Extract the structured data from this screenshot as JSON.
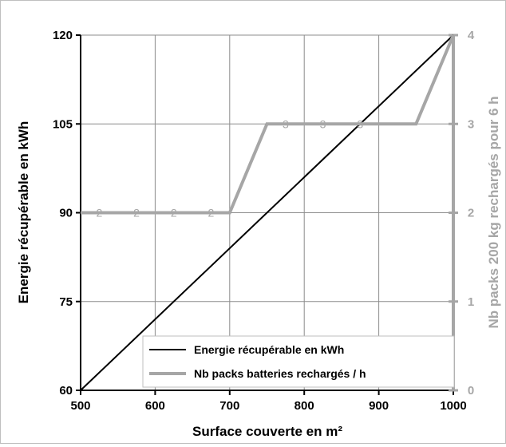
{
  "chart_data": {
    "type": "line",
    "xlabel": "Surface couverte en m²",
    "ylabel": "Energie récupérable en kWh",
    "y2label": "Nb packs 200 kg rechargés pour 6 h",
    "xlim": [
      500,
      1000
    ],
    "ylim": [
      60,
      120
    ],
    "y2lim": [
      0,
      4
    ],
    "xticks": [
      "500",
      "600",
      "700",
      "800",
      "900",
      "1000"
    ],
    "yticks": [
      "60",
      "75",
      "90",
      "105",
      "120"
    ],
    "y2ticks": [
      "0",
      "1",
      "2",
      "3",
      "4"
    ],
    "grid": true,
    "legend_position": "bottom-right",
    "series": [
      {
        "name": "Energie récupérable en kWh",
        "axis": "left",
        "color": "#000000",
        "x": [
          500,
          1000
        ],
        "values": [
          60,
          120
        ]
      },
      {
        "name": "Nb packs batteries rechargés / h",
        "axis": "right",
        "color": "#a6a6a6",
        "x": [
          500,
          550,
          600,
          650,
          700,
          750,
          800,
          850,
          900,
          950,
          1000
        ],
        "values": [
          2,
          2,
          2,
          2,
          2,
          3,
          3,
          3,
          3,
          3,
          4
        ],
        "labels": [
          "2",
          "2",
          "2",
          "2",
          "3",
          "3",
          "3"
        ],
        "label_x": [
          525,
          575,
          625,
          675,
          775,
          825,
          875
        ]
      }
    ]
  }
}
